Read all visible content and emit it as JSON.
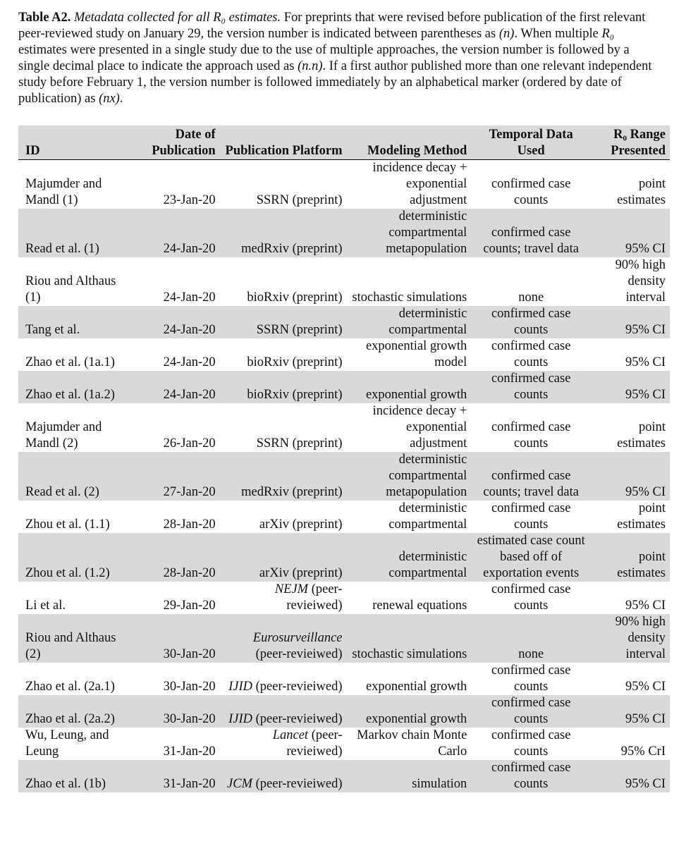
{
  "caption": {
    "runs": [
      "Table A2.",
      "Metadata collected for all R₀ estimates.",
      " For preprints that were revised before publication of the first relevant peer-reviewed study on January 29, the version number is indicated between parentheses as ",
      "(n)",
      ". When multiple ",
      "R₀",
      " estimates were presented in a single study due to the use of multiple approaches, the version number is followed by a single decimal place to indicate the approach used as ",
      "(n.n)",
      ". If a first author published more than one relevant independent study before February 1, the version number is followed immediately by an alphabetical marker (ordered by date of publication) as ",
      "(nx)",
      "."
    ]
  },
  "table": {
    "header": [
      "ID",
      "Date of Publication",
      "Publication Platform",
      "Modeling Method",
      "Temporal Data Used",
      "R₀ Range Presented"
    ],
    "rows": [
      [
        "Majumder and Mandl (1)",
        "23-Jan-20",
        "SSRN (preprint)",
        "incidence decay + exponential adjustment",
        "confirmed case counts",
        "point estimates"
      ],
      [
        "Read et al. (1)",
        "24-Jan-20",
        "medRxiv (preprint)",
        "deterministic compartmental metapopulation",
        "confirmed case counts; travel data",
        "95% CI"
      ],
      [
        "Riou and Althaus (1)",
        "24-Jan-20",
        "bioRxiv (preprint)",
        "stochastic simulations",
        "none",
        "90% high density interval"
      ],
      [
        "Tang et al.",
        "24-Jan-20",
        "SSRN (preprint)",
        "deterministic compartmental",
        "confirmed case counts",
        "95% CI"
      ],
      [
        "Zhao et al. (1a.1)",
        "24-Jan-20",
        "bioRxiv (preprint)",
        "exponential growth model",
        "confirmed case counts",
        "95% CI"
      ],
      [
        "Zhao et al. (1a.2)",
        "24-Jan-20",
        "bioRxiv (preprint)",
        "exponential growth",
        "confirmed case counts",
        "95% CI"
      ],
      [
        "Majumder and Mandl (2)",
        "26-Jan-20",
        "SSRN (preprint)",
        "incidence decay + exponential adjustment",
        "confirmed case counts",
        "point estimates"
      ],
      [
        "Read et al. (2)",
        "27-Jan-20",
        "medRxiv (preprint)",
        "deterministic compartmental metapopulation",
        "confirmed case counts; travel data",
        "95% CI"
      ],
      [
        "Zhou et al. (1.1)",
        "28-Jan-20",
        "arXiv (preprint)",
        "deterministic compartmental",
        "confirmed case counts",
        "point estimates"
      ],
      [
        "Zhou et al. (1.2)",
        "28-Jan-20",
        "arXiv (preprint)",
        "deterministic compartmental",
        "estimated case count based off of exportation events",
        "point estimates"
      ],
      [
        "Li et al.",
        "29-Jan-20",
        [
          "NEJM",
          " (peer-revieiwed)"
        ],
        "renewal equations",
        "confirmed case counts",
        "95% CI"
      ],
      [
        "Riou and Althaus (2)",
        "30-Jan-20",
        [
          "Eurosurveillance",
          " (peer-revieiwed)"
        ],
        "stochastic simulations",
        "none",
        "90% high density interval"
      ],
      [
        "Zhao et al. (2a.1)",
        "30-Jan-20",
        [
          "IJID",
          " (peer-revieiwed)"
        ],
        "exponential growth",
        "confirmed case counts",
        "95% CI"
      ],
      [
        "Zhao et al. (2a.2)",
        "30-Jan-20",
        [
          "IJID",
          " (peer-revieiwed)"
        ],
        "exponential growth",
        "confirmed case counts",
        "95% CI"
      ],
      [
        "Wu, Leung, and Leung",
        "31-Jan-20",
        [
          "Lancet",
          " (peer-revieiwed)"
        ],
        "Markov chain Monte Carlo",
        "confirmed case counts",
        "95% CrI"
      ],
      [
        "Zhao et al. (1b)",
        "31-Jan-20",
        [
          "JCM",
          " (peer-revieiwed)"
        ],
        "simulation",
        "confirmed case counts",
        "95% CI"
      ]
    ]
  }
}
